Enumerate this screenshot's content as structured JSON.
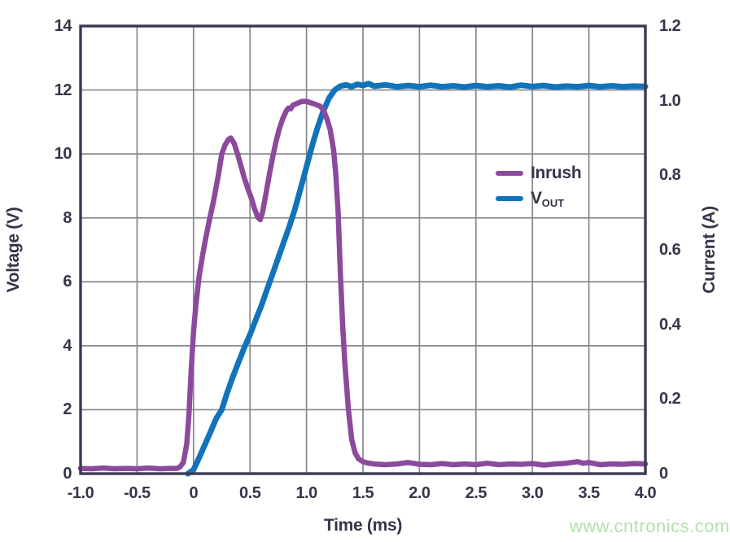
{
  "watermark": {
    "text": "www.cntronics.com",
    "color": "#b2e0ad"
  },
  "chart_data": {
    "type": "line",
    "title": "",
    "xlabel": "Time (ms)",
    "ylabel_left": "Voltage (V)",
    "ylabel_right": "Current (A)",
    "xlim": [
      -1.0,
      4.0
    ],
    "ylim_left": [
      0,
      14
    ],
    "ylim_right": [
      0,
      1.2
    ],
    "grid": true,
    "colors": {
      "axis_border": "#3a3a54",
      "gridline": "#87878f",
      "tick_text": "#35354a"
    },
    "x_ticks": [
      {
        "v": -1.0,
        "label": "-1.0"
      },
      {
        "v": -0.5,
        "label": "-0.5"
      },
      {
        "v": 0.0,
        "label": "0"
      },
      {
        "v": 0.5,
        "label": "0.5"
      },
      {
        "v": 1.0,
        "label": "1.0"
      },
      {
        "v": 1.5,
        "label": "1.5"
      },
      {
        "v": 2.0,
        "label": "2.0"
      },
      {
        "v": 2.5,
        "label": "2.5"
      },
      {
        "v": 3.0,
        "label": "3.0"
      },
      {
        "v": 3.5,
        "label": "3.5"
      },
      {
        "v": 4.0,
        "label": "4.0"
      }
    ],
    "y_left_ticks": [
      {
        "v": 14,
        "label": "14"
      },
      {
        "v": 12,
        "label": "12"
      },
      {
        "v": 10,
        "label": "10"
      },
      {
        "v": 8,
        "label": "8"
      },
      {
        "v": 6,
        "label": "6"
      },
      {
        "v": 4,
        "label": "4"
      },
      {
        "v": 2,
        "label": "2"
      },
      {
        "v": 0,
        "label": "0"
      }
    ],
    "y_right_ticks": [
      {
        "v": 1.2,
        "label": "1.2"
      },
      {
        "v": 1.0,
        "label": "1.0"
      },
      {
        "v": 0.8,
        "label": "0.8"
      },
      {
        "v": 0.6,
        "label": "0.6"
      },
      {
        "v": 0.4,
        "label": "0.4"
      },
      {
        "v": 0.2,
        "label": "0.2"
      },
      {
        "v": 0.0,
        "label": "0"
      }
    ],
    "legend": {
      "position": "inside-right",
      "entries": [
        {
          "label": "Inrush",
          "sub": ""
        },
        {
          "label": "V",
          "sub": "OUT"
        }
      ]
    },
    "series": [
      {
        "name": "VOUT",
        "axis": "left",
        "unit": "V",
        "color": "#1173b9",
        "stroke_width": 7,
        "points": [
          [
            -0.05,
            0.0
          ],
          [
            0.0,
            0.12
          ],
          [
            0.05,
            0.5
          ],
          [
            0.1,
            0.9
          ],
          [
            0.15,
            1.3
          ],
          [
            0.2,
            1.72
          ],
          [
            0.25,
            2.0
          ],
          [
            0.3,
            2.55
          ],
          [
            0.35,
            3.05
          ],
          [
            0.4,
            3.5
          ],
          [
            0.45,
            3.95
          ],
          [
            0.5,
            4.35
          ],
          [
            0.55,
            4.8
          ],
          [
            0.6,
            5.25
          ],
          [
            0.65,
            5.75
          ],
          [
            0.7,
            6.25
          ],
          [
            0.75,
            6.75
          ],
          [
            0.8,
            7.25
          ],
          [
            0.85,
            7.75
          ],
          [
            0.9,
            8.3
          ],
          [
            0.95,
            8.95
          ],
          [
            1.0,
            9.6
          ],
          [
            1.05,
            10.25
          ],
          [
            1.1,
            10.85
          ],
          [
            1.15,
            11.35
          ],
          [
            1.2,
            11.75
          ],
          [
            1.25,
            12.0
          ],
          [
            1.3,
            12.12
          ],
          [
            1.35,
            12.16
          ],
          [
            1.4,
            12.1
          ],
          [
            1.45,
            12.18
          ],
          [
            1.5,
            12.14
          ],
          [
            1.55,
            12.2
          ],
          [
            1.6,
            12.12
          ],
          [
            1.7,
            12.16
          ],
          [
            1.8,
            12.1
          ],
          [
            1.9,
            12.14
          ],
          [
            2.0,
            12.1
          ],
          [
            2.1,
            12.15
          ],
          [
            2.2,
            12.1
          ],
          [
            2.3,
            12.13
          ],
          [
            2.4,
            12.09
          ],
          [
            2.5,
            12.14
          ],
          [
            2.6,
            12.1
          ],
          [
            2.7,
            12.13
          ],
          [
            2.8,
            12.09
          ],
          [
            2.9,
            12.15
          ],
          [
            3.0,
            12.11
          ],
          [
            3.1,
            12.14
          ],
          [
            3.2,
            12.09
          ],
          [
            3.3,
            12.12
          ],
          [
            3.4,
            12.1
          ],
          [
            3.5,
            12.14
          ],
          [
            3.6,
            12.1
          ],
          [
            3.7,
            12.13
          ],
          [
            3.8,
            12.1
          ],
          [
            3.9,
            12.12
          ],
          [
            4.0,
            12.11
          ]
        ]
      },
      {
        "name": "Inrush",
        "axis": "right",
        "unit": "A",
        "color": "#8c4a9c",
        "stroke_width": 6.5,
        "points": [
          [
            -1.0,
            0.014
          ],
          [
            -0.9,
            0.013
          ],
          [
            -0.8,
            0.015
          ],
          [
            -0.7,
            0.013
          ],
          [
            -0.6,
            0.014
          ],
          [
            -0.5,
            0.013
          ],
          [
            -0.4,
            0.015
          ],
          [
            -0.3,
            0.013
          ],
          [
            -0.2,
            0.014
          ],
          [
            -0.15,
            0.014
          ],
          [
            -0.12,
            0.018
          ],
          [
            -0.09,
            0.03
          ],
          [
            -0.06,
            0.08
          ],
          [
            -0.04,
            0.16
          ],
          [
            -0.02,
            0.28
          ],
          [
            0.0,
            0.38
          ],
          [
            0.02,
            0.45
          ],
          [
            0.05,
            0.53
          ],
          [
            0.08,
            0.585
          ],
          [
            0.11,
            0.635
          ],
          [
            0.145,
            0.686
          ],
          [
            0.18,
            0.735
          ],
          [
            0.22,
            0.8
          ],
          [
            0.25,
            0.857
          ],
          [
            0.28,
            0.882
          ],
          [
            0.31,
            0.896
          ],
          [
            0.33,
            0.9
          ],
          [
            0.36,
            0.885
          ],
          [
            0.39,
            0.857
          ],
          [
            0.42,
            0.825
          ],
          [
            0.45,
            0.792
          ],
          [
            0.48,
            0.765
          ],
          [
            0.51,
            0.74
          ],
          [
            0.54,
            0.71
          ],
          [
            0.57,
            0.687
          ],
          [
            0.59,
            0.681
          ],
          [
            0.61,
            0.7
          ],
          [
            0.64,
            0.748
          ],
          [
            0.67,
            0.8
          ],
          [
            0.7,
            0.848
          ],
          [
            0.73,
            0.89
          ],
          [
            0.76,
            0.925
          ],
          [
            0.79,
            0.952
          ],
          [
            0.82,
            0.972
          ],
          [
            0.84,
            0.98
          ],
          [
            0.86,
            0.978
          ],
          [
            0.88,
            0.988
          ],
          [
            0.92,
            0.993
          ],
          [
            0.96,
            0.998
          ],
          [
            1.0,
            0.998
          ],
          [
            1.04,
            0.994
          ],
          [
            1.08,
            0.99
          ],
          [
            1.12,
            0.985
          ],
          [
            1.15,
            0.975
          ],
          [
            1.18,
            0.952
          ],
          [
            1.21,
            0.922
          ],
          [
            1.24,
            0.868
          ],
          [
            1.26,
            0.8
          ],
          [
            1.28,
            0.7
          ],
          [
            1.3,
            0.54
          ],
          [
            1.32,
            0.4
          ],
          [
            1.34,
            0.295
          ],
          [
            1.37,
            0.175
          ],
          [
            1.4,
            0.092
          ],
          [
            1.43,
            0.056
          ],
          [
            1.46,
            0.04
          ],
          [
            1.5,
            0.032
          ],
          [
            1.55,
            0.028
          ],
          [
            1.6,
            0.026
          ],
          [
            1.7,
            0.024
          ],
          [
            1.8,
            0.026
          ],
          [
            1.9,
            0.03
          ],
          [
            2.0,
            0.025
          ],
          [
            2.1,
            0.024
          ],
          [
            2.2,
            0.027
          ],
          [
            2.3,
            0.024
          ],
          [
            2.4,
            0.026
          ],
          [
            2.5,
            0.024
          ],
          [
            2.6,
            0.028
          ],
          [
            2.7,
            0.024
          ],
          [
            2.8,
            0.026
          ],
          [
            2.9,
            0.025
          ],
          [
            3.0,
            0.027
          ],
          [
            3.1,
            0.023
          ],
          [
            3.2,
            0.026
          ],
          [
            3.3,
            0.028
          ],
          [
            3.4,
            0.032
          ],
          [
            3.45,
            0.028
          ],
          [
            3.5,
            0.03
          ],
          [
            3.6,
            0.024
          ],
          [
            3.7,
            0.026
          ],
          [
            3.8,
            0.025
          ],
          [
            3.9,
            0.027
          ],
          [
            4.0,
            0.026
          ]
        ]
      }
    ]
  }
}
